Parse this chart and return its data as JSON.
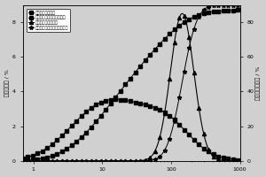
{
  "ylabel_left": "粒径百分比 / %",
  "ylabel_right": "粒径累计百分比 / %",
  "legend": [
    "处理的超细铜尾砂",
    "处理的超细铜尾砂（累计）",
    "未处理的超细铜尾砂",
    "未处理的超细铜尾砂（累计）"
  ],
  "xlim_log": [
    0.7,
    1000
  ],
  "ylim_left": [
    0,
    9
  ],
  "ylim_right": [
    0,
    90
  ],
  "yticks_left": [
    0,
    2,
    4,
    6,
    8
  ],
  "yticks_right": [
    0,
    20,
    40,
    60,
    80
  ],
  "background_color": "#d0d0d0",
  "line_color": "#000000"
}
